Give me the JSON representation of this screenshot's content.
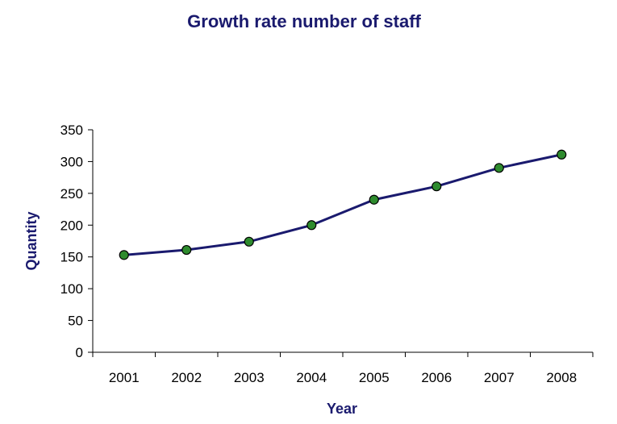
{
  "chart_data": {
    "type": "line",
    "title": "Growth rate number of staff",
    "xlabel": "Year",
    "ylabel": "Quantity",
    "categories": [
      "2001",
      "2002",
      "2003",
      "2004",
      "2005",
      "2006",
      "2007",
      "2008"
    ],
    "series": [
      {
        "values": [
          153,
          161,
          174,
          200,
          240,
          261,
          290,
          311
        ]
      }
    ],
    "ylim": [
      0,
      350
    ],
    "yticks": [
      "0",
      "50",
      "100",
      "150",
      "200",
      "250",
      "300",
      "350"
    ],
    "grid": false,
    "legend": "none",
    "colors": {
      "line": "#1a1a6e",
      "marker": "#2e8b2e",
      "text": "#1a1a6e"
    }
  }
}
